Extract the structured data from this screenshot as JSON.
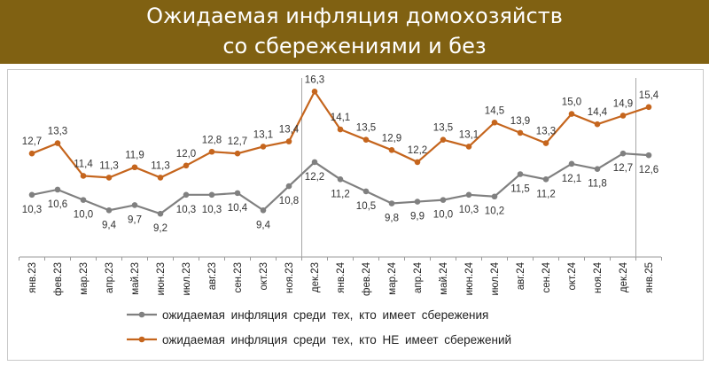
{
  "header": {
    "title_line1": "Ожидаемая инфляция домохозяйств",
    "title_line2": "со сбережениями и без"
  },
  "chart_data": {
    "type": "line",
    "title": "Ожидаемая инфляция домохозяйств со сбережениями и без",
    "categories": [
      "янв.23",
      "фев.23",
      "мар.23",
      "апр.23",
      "май.23",
      "июн.23",
      "июл.23",
      "авг.23",
      "сен.23",
      "окт.23",
      "ноя.23",
      "дек.23",
      "янв.24",
      "фев.24",
      "мар.24",
      "апр.24",
      "май.24",
      "июн.24",
      "июл.24",
      "авг.24",
      "сен.24",
      "окт.24",
      "ноя.24",
      "дек.24",
      "янв.25"
    ],
    "series": [
      {
        "name": "ожидаемая  инфляция  среди тех,  кто имеет сбережения",
        "color": "#808080",
        "values": [
          10.3,
          10.6,
          10.0,
          9.4,
          9.7,
          9.2,
          10.3,
          10.3,
          10.4,
          9.4,
          10.8,
          12.2,
          11.2,
          10.5,
          9.8,
          9.9,
          10.0,
          10.3,
          10.2,
          11.5,
          11.2,
          12.1,
          11.8,
          12.7,
          12.6
        ],
        "labels": [
          "10,3",
          "10,6",
          "10,0",
          "9,4",
          "9,7",
          "9,2",
          "10,3",
          "10,3",
          "10,4",
          "9,4",
          "10,8",
          "12,2",
          "11,2",
          "10,5",
          "9,8",
          "9,9",
          "10,0",
          "10,3",
          "10,2",
          "11,5",
          "11,2",
          "12,1",
          "11,8",
          "12,7",
          "12,6"
        ]
      },
      {
        "name": "ожидаемая  инфляция  среди тех,  кто НЕ имеет сбережений",
        "color": "#c5651d",
        "values": [
          12.7,
          13.3,
          11.4,
          11.3,
          11.9,
          11.3,
          12.0,
          12.8,
          12.7,
          13.1,
          13.4,
          16.3,
          14.1,
          13.5,
          12.9,
          12.2,
          13.5,
          13.1,
          14.5,
          13.9,
          13.3,
          15.0,
          14.4,
          14.9,
          15.4
        ],
        "labels": [
          "12,7",
          "13,3",
          "11,4",
          "11,3",
          "11,9",
          "11,3",
          "12,0",
          "12,8",
          "12,7",
          "13,1",
          "13,4",
          "16,3",
          "14,1",
          "13,5",
          "12,9",
          "12,2",
          "13,5",
          "13,1",
          "14,5",
          "13,9",
          "13,3",
          "15,0",
          "14,4",
          "14,9",
          "15,4"
        ]
      }
    ],
    "ylim": [
      7.2,
      17.5
    ],
    "grid": false,
    "legend_position": "bottom",
    "separators_after": [
      "ноя.23",
      "дек.24"
    ]
  }
}
